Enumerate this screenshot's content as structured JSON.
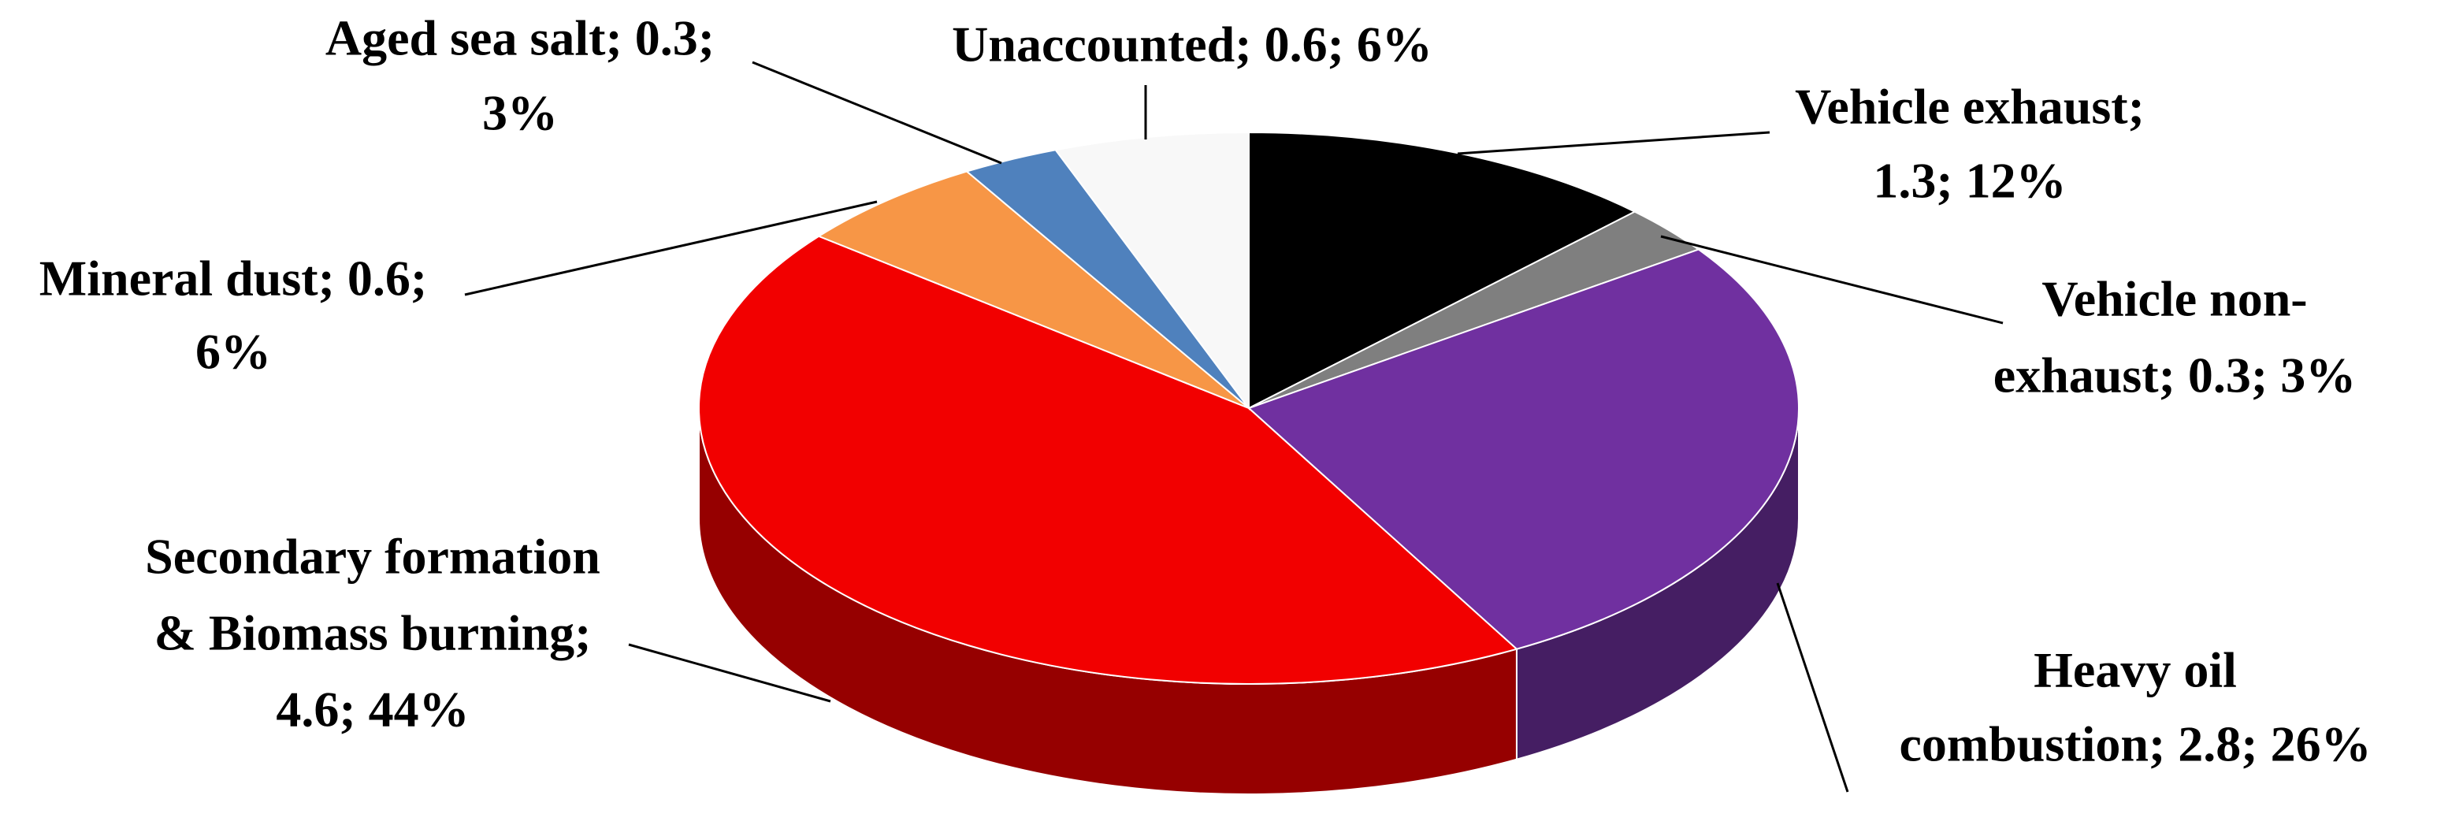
{
  "chart_data": {
    "type": "pie3d",
    "labels": [
      [
        "Vehicle exhaust;",
        "1.3; 12%"
      ],
      [
        "Vehicle non-",
        "exhaust; 0.3; 3%"
      ],
      [
        "Heavy oil",
        "combustion; 2.8; 26%"
      ],
      [
        "Secondary formation",
        "& Biomass burning;",
        "4.6; 44%"
      ],
      [
        "Mineral dust; 0.6;",
        "6%"
      ],
      [
        "Aged sea salt; 0.3;",
        "3%"
      ],
      [
        "Unaccounted; 0.6; 6%"
      ]
    ],
    "values": [
      1.3,
      0.3,
      2.8,
      4.6,
      0.6,
      0.3,
      0.6
    ],
    "colors": [
      "#000000",
      "#7f7f7f",
      "#7030a0",
      "#f20000",
      "#f79646",
      "#4f81bd",
      "#f8f8f8"
    ]
  }
}
